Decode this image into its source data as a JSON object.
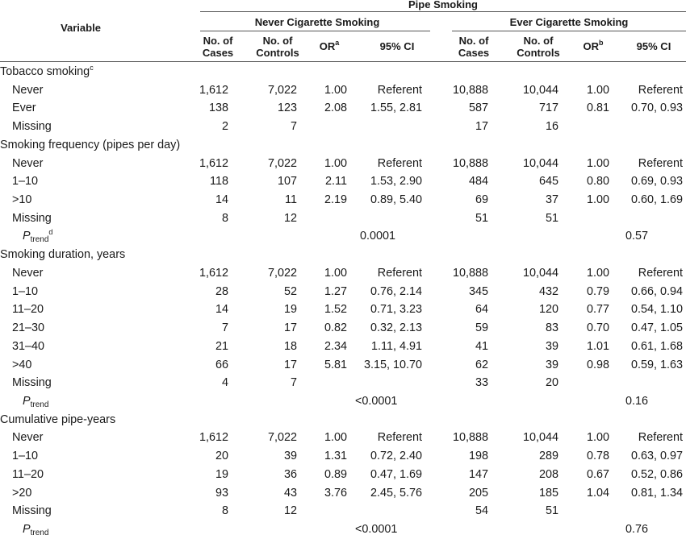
{
  "header": {
    "variable": "Variable",
    "group_title": "Pipe Smoking",
    "never_group": "Never Cigarette Smoking",
    "ever_group": "Ever Cigarette Smoking",
    "cols": {
      "cases": [
        "No. of",
        "Cases"
      ],
      "controls": [
        "No. of",
        "Controls"
      ],
      "or_never": "OR",
      "or_never_sup": "a",
      "or_ever": "OR",
      "or_ever_sup": "b",
      "ci": "95% CI"
    }
  },
  "rows": [
    {
      "type": "section",
      "label": "Tobacco smoking",
      "sup": "c"
    },
    {
      "type": "data",
      "label": "Never",
      "v": [
        "1,612",
        "7,022",
        "1.00",
        "Referent",
        "10,888",
        "10,044",
        "1.00",
        "Referent"
      ]
    },
    {
      "type": "data",
      "label": "Ever",
      "v": [
        "138",
        "123",
        "2.08",
        "1.55, 2.81",
        "587",
        "717",
        "0.81",
        "0.70, 0.93"
      ]
    },
    {
      "type": "data",
      "label": "Missing",
      "v": [
        "2",
        "7",
        "",
        "",
        "17",
        "16",
        "",
        ""
      ]
    },
    {
      "type": "section",
      "label": "Smoking frequency (pipes per day)",
      "sup": ""
    },
    {
      "type": "data",
      "label": "Never",
      "v": [
        "1,612",
        "7,022",
        "1.00",
        "Referent",
        "10,888",
        "10,044",
        "1.00",
        "Referent"
      ]
    },
    {
      "type": "data",
      "label": "1–10",
      "v": [
        "118",
        "107",
        "2.11",
        "1.53, 2.90",
        "484",
        "645",
        "0.80",
        "0.69, 0.93"
      ]
    },
    {
      "type": "data",
      "label": ">10",
      "v": [
        "14",
        "11",
        "2.19",
        "0.89, 5.40",
        "69",
        "37",
        "1.00",
        "0.60, 1.69"
      ]
    },
    {
      "type": "data",
      "label": "Missing",
      "v": [
        "8",
        "12",
        "",
        "",
        "51",
        "51",
        "",
        ""
      ]
    },
    {
      "type": "ptrend",
      "label": "P",
      "sub": "trend",
      "sup": "d",
      "p_never": "0.0001",
      "p_ever": "0.57"
    },
    {
      "type": "section",
      "label": "Smoking duration, years",
      "sup": ""
    },
    {
      "type": "data",
      "label": "Never",
      "v": [
        "1,612",
        "7,022",
        "1.00",
        "Referent",
        "10,888",
        "10,044",
        "1.00",
        "Referent"
      ]
    },
    {
      "type": "data",
      "label": "1–10",
      "v": [
        "28",
        "52",
        "1.27",
        "0.76, 2.14",
        "345",
        "432",
        "0.79",
        "0.66, 0.94"
      ]
    },
    {
      "type": "data",
      "label": "11–20",
      "v": [
        "14",
        "19",
        "1.52",
        "0.71, 3.23",
        "64",
        "120",
        "0.77",
        "0.54, 1.10"
      ]
    },
    {
      "type": "data",
      "label": "21–30",
      "v": [
        "7",
        "17",
        "0.82",
        "0.32, 2.13",
        "59",
        "83",
        "0.70",
        "0.47, 1.05"
      ]
    },
    {
      "type": "data",
      "label": "31–40",
      "v": [
        "21",
        "18",
        "2.34",
        "1.11, 4.91",
        "41",
        "39",
        "1.01",
        "0.61, 1.68"
      ]
    },
    {
      "type": "data",
      "label": ">40",
      "v": [
        "66",
        "17",
        "5.81",
        "3.15, 10.70",
        "62",
        "39",
        "0.98",
        "0.59, 1.63"
      ]
    },
    {
      "type": "data",
      "label": "Missing",
      "v": [
        "4",
        "7",
        "",
        "",
        "33",
        "20",
        "",
        ""
      ]
    },
    {
      "type": "ptrend",
      "label": "P",
      "sub": "trend",
      "sup": "",
      "p_never": "<0.0001",
      "p_ever": "0.16"
    },
    {
      "type": "section",
      "label": "Cumulative pipe-years",
      "sup": ""
    },
    {
      "type": "data",
      "label": "Never",
      "v": [
        "1,612",
        "7,022",
        "1.00",
        "Referent",
        "10,888",
        "10,044",
        "1.00",
        "Referent"
      ]
    },
    {
      "type": "data",
      "label": "1–10",
      "v": [
        "20",
        "39",
        "1.31",
        "0.72, 2.40",
        "198",
        "289",
        "0.78",
        "0.63, 0.97"
      ]
    },
    {
      "type": "data",
      "label": "11–20",
      "v": [
        "19",
        "36",
        "0.89",
        "0.47, 1.69",
        "147",
        "208",
        "0.67",
        "0.52, 0.86"
      ]
    },
    {
      "type": "data",
      "label": ">20",
      "v": [
        "93",
        "43",
        "3.76",
        "2.45, 5.76",
        "205",
        "185",
        "1.04",
        "0.81, 1.34"
      ]
    },
    {
      "type": "data",
      "label": "Missing",
      "v": [
        "8",
        "12",
        "",
        "",
        "54",
        "51",
        "",
        ""
      ]
    },
    {
      "type": "ptrend",
      "label": "P",
      "sub": "trend",
      "sup": "",
      "p_never": "<0.0001",
      "p_ever": "0.76"
    }
  ]
}
